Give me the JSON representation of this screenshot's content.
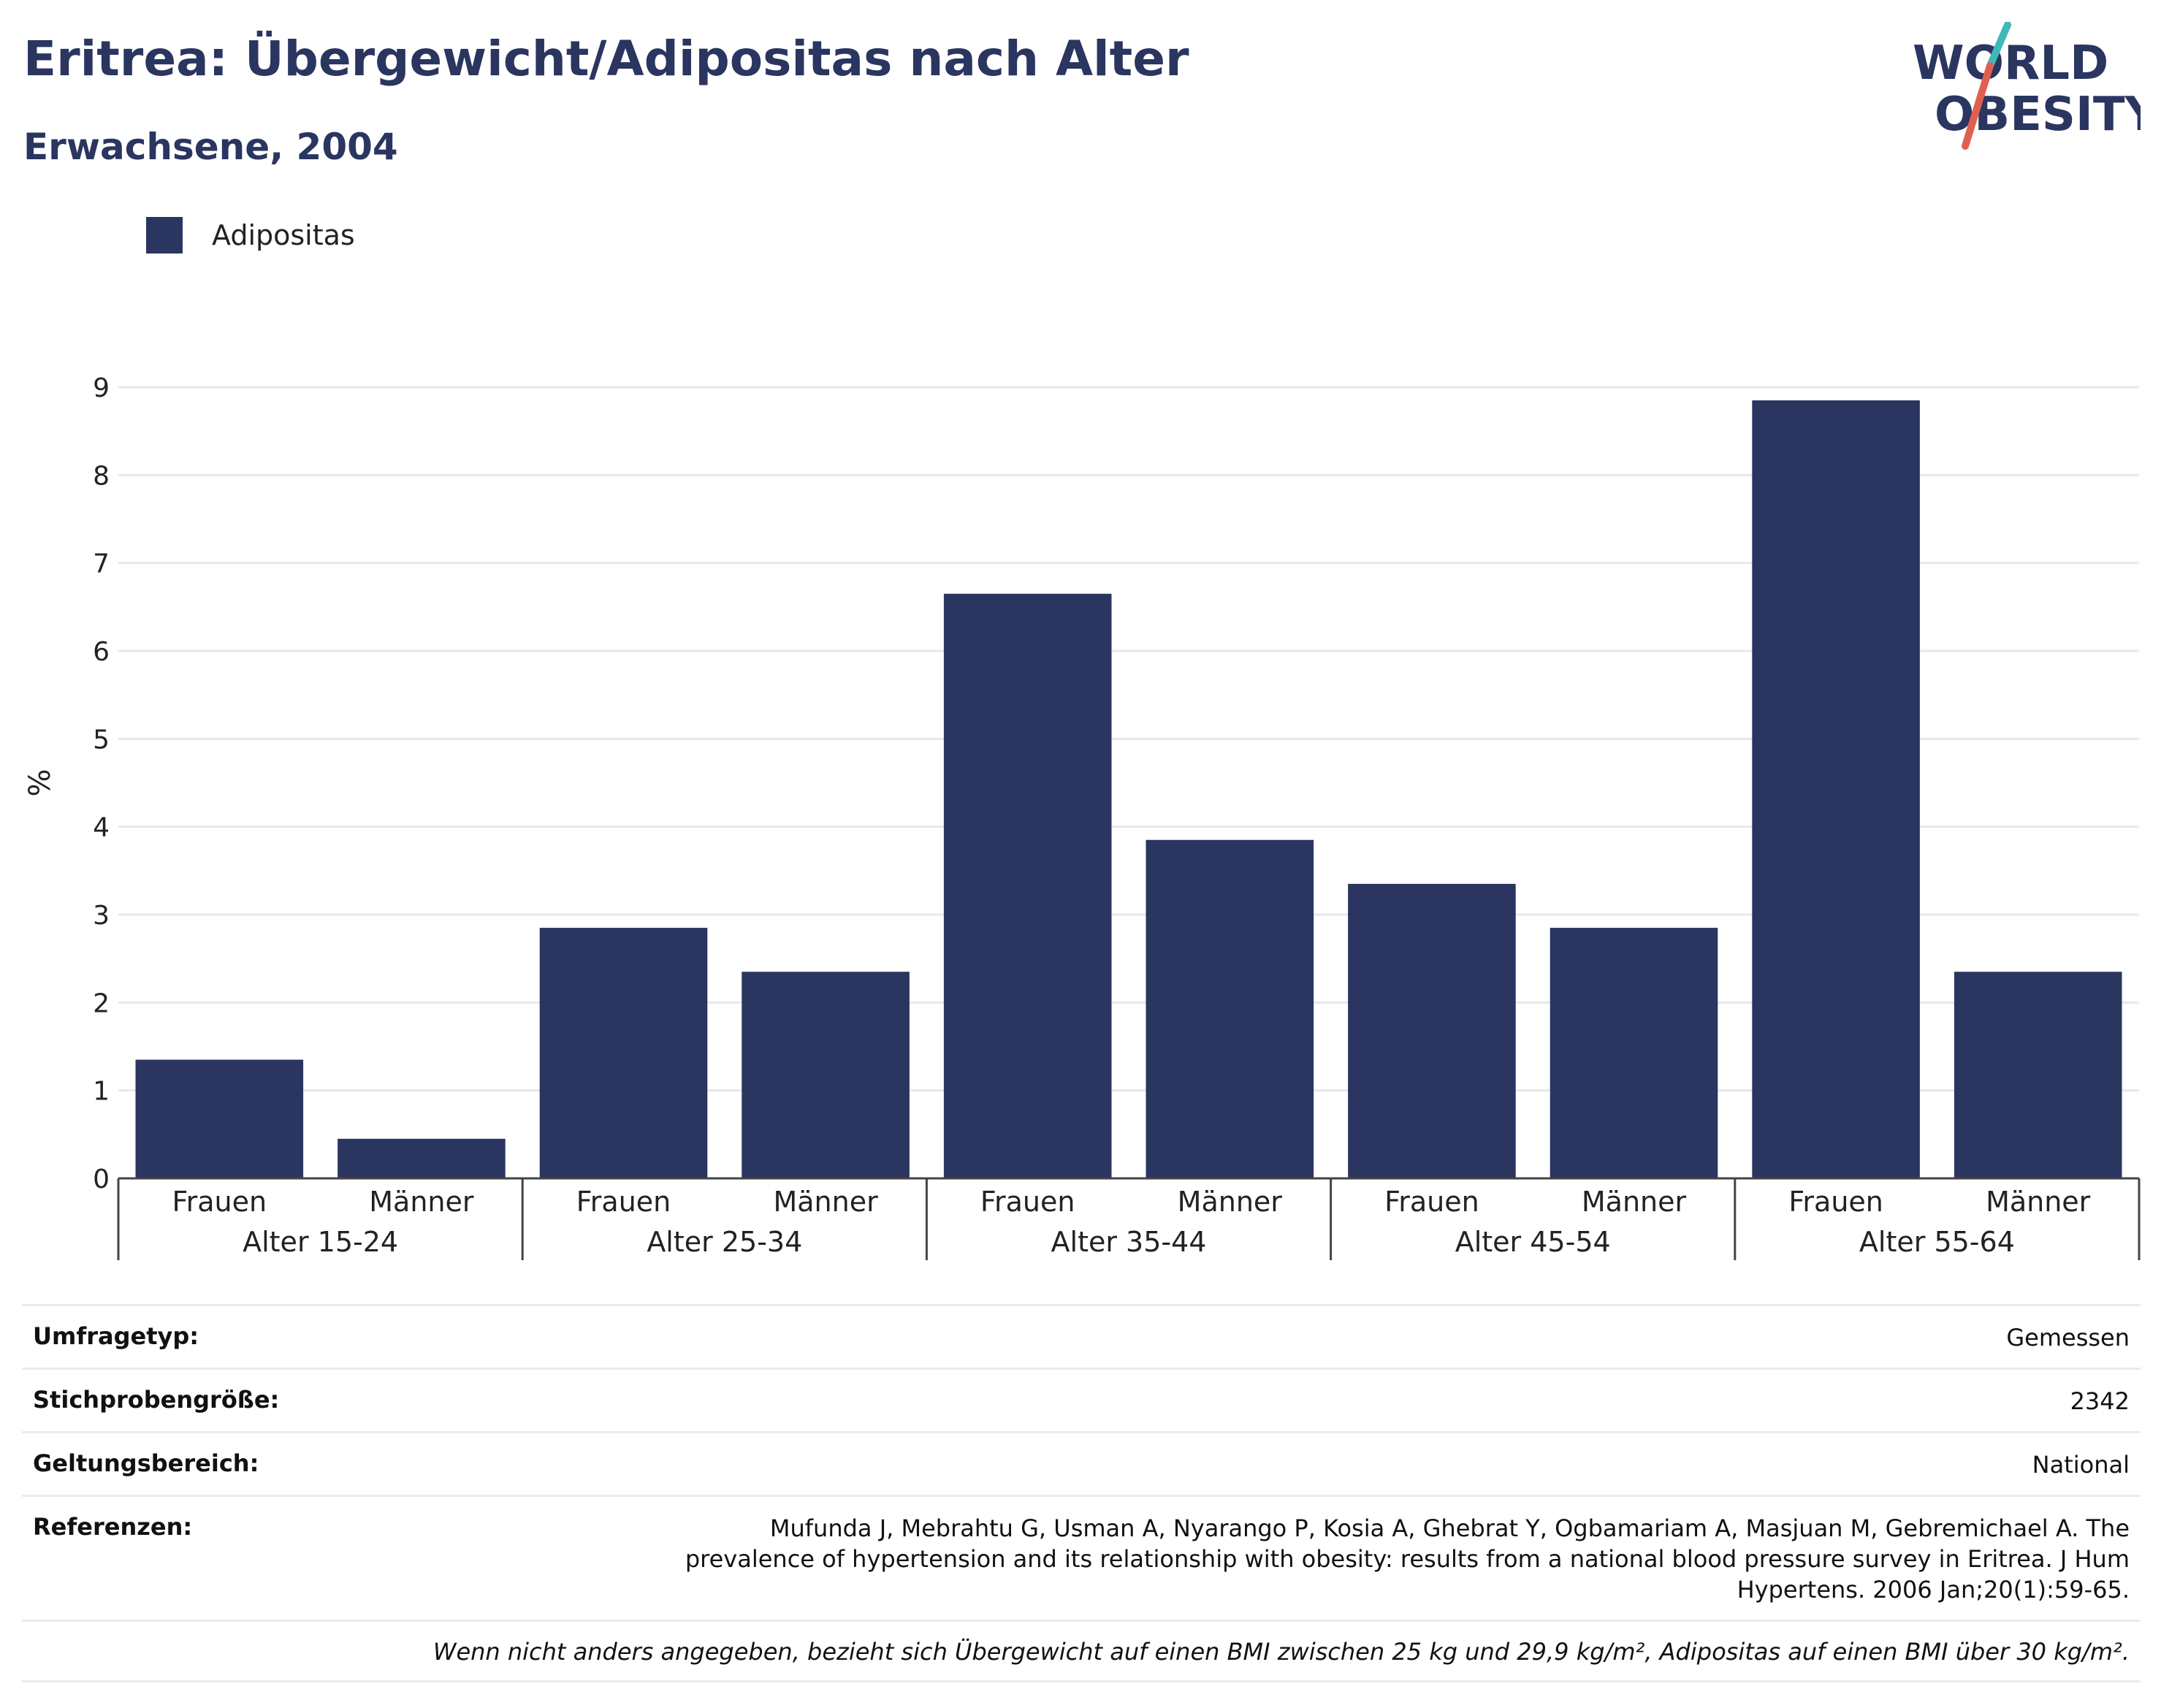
{
  "header": {
    "title": "Eritrea: Übergewicht/Adipositas nach Alter",
    "subtitle": "Erwachsene, 2004"
  },
  "logo": {
    "line1": "WORLD",
    "line2": "OBESITY",
    "accent_teal": "#3fb8b8",
    "accent_red": "#e0604f",
    "text_color": "#2a3560"
  },
  "legend": {
    "items": [
      {
        "label": "Adipositas",
        "color": "#2a3560"
      }
    ]
  },
  "chart_data": {
    "type": "bar",
    "ylabel": "%",
    "ylim": [
      0,
      9
    ],
    "yticks": [
      0,
      1,
      2,
      3,
      4,
      5,
      6,
      7,
      8,
      9
    ],
    "grid": true,
    "legend_position": "top-left",
    "bar_color": "#2a3560",
    "groups": [
      "Alter 15-24",
      "Alter 25-34",
      "Alter 35-44",
      "Alter 45-54",
      "Alter 55-64"
    ],
    "subcategories": [
      "Frauen",
      "Männer"
    ],
    "series": [
      {
        "name": "Adipositas",
        "values": [
          1.35,
          0.45,
          2.85,
          2.35,
          6.65,
          3.85,
          3.35,
          2.85,
          8.85,
          2.35
        ]
      }
    ]
  },
  "meta": {
    "survey_type_label": "Umfragetyp:",
    "survey_type_value": "Gemessen",
    "sample_size_label": "Stichprobengröße:",
    "sample_size_value": "2342",
    "scope_label": "Geltungsbereich:",
    "scope_value": "National",
    "references_label": "Referenzen:",
    "references_value": "Mufunda J, Mebrahtu G, Usman A, Nyarango P, Kosia A, Ghebrat Y, Ogbamariam A, Masjuan M, Gebremichael A. The prevalence of hypertension and its relationship with obesity: results from a national blood pressure survey in Eritrea. J Hum Hypertens. 2006 Jan;20(1):59-65.",
    "note": "Wenn nicht anders angegeben, bezieht sich Übergewicht auf einen BMI zwischen 25 kg und 29,9 kg/m², Adipositas auf einen BMI über 30 kg/m²."
  }
}
